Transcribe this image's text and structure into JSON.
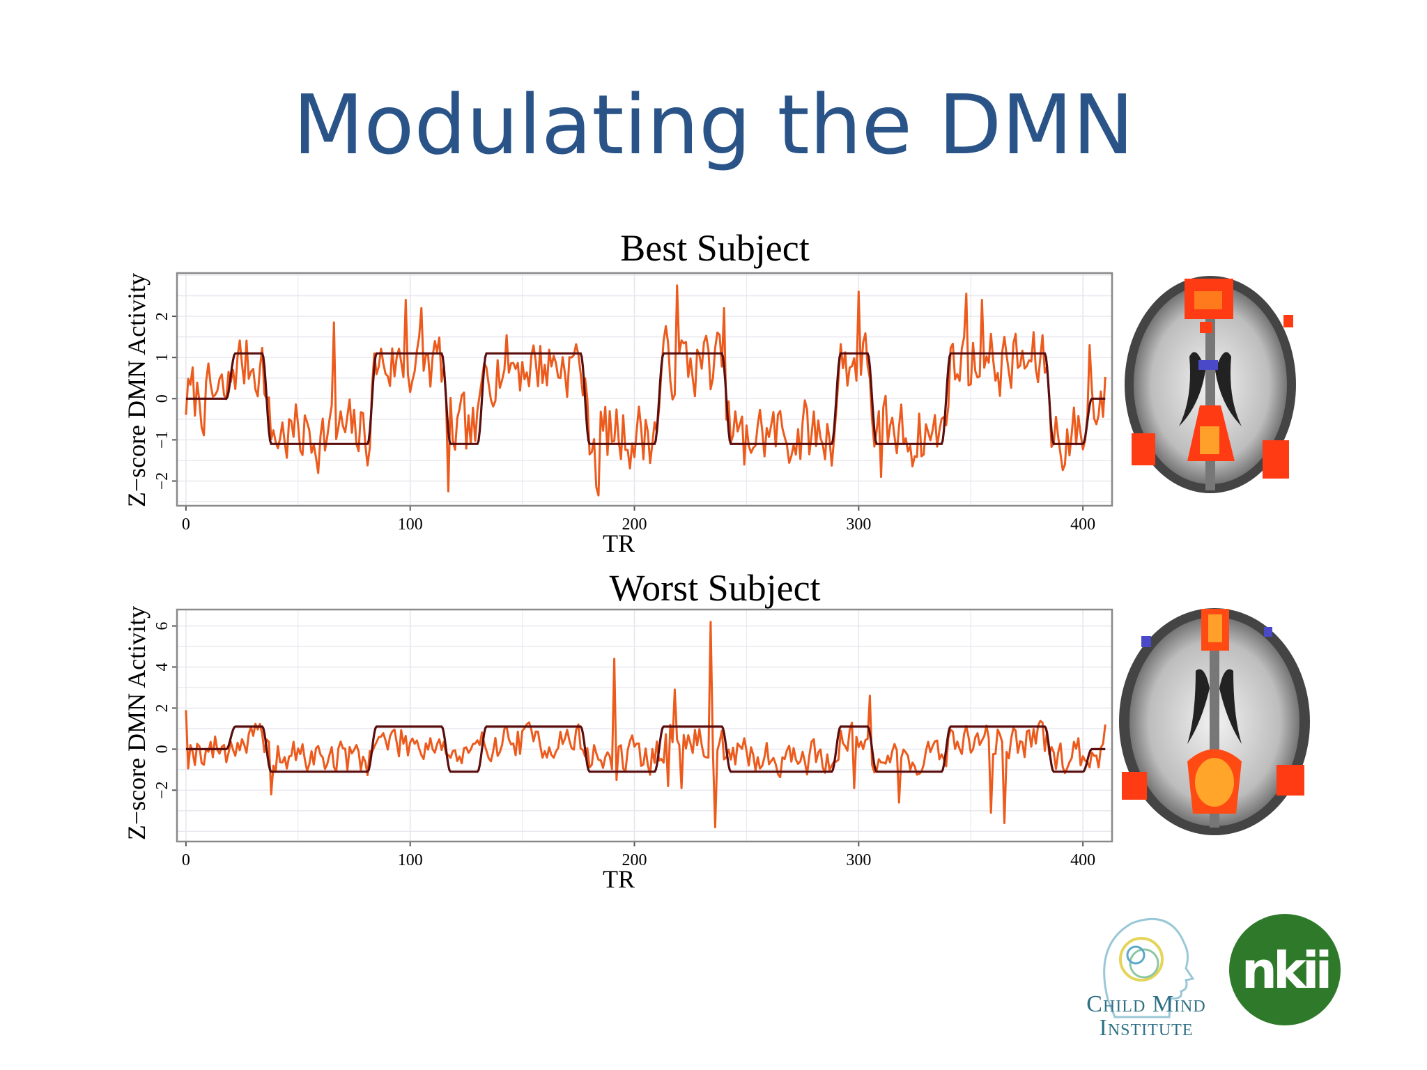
{
  "slide": {
    "title": "Modulating the DMN"
  },
  "colors": {
    "title": "#2a5488",
    "signal": "#ec5a1c",
    "model": "#5a0e0e",
    "panel_border": "#888888",
    "grid": "#e6e6ee"
  },
  "logos": {
    "child_mind_institute": "Child Mind\nInstitute",
    "nkii": "nkii"
  },
  "chart_data": [
    {
      "type": "line",
      "title": "Best Subject",
      "xlabel": "TR",
      "ylabel": "Z−score DMN Activity",
      "xlim": [
        -4,
        413
      ],
      "ylim": [
        -2.6,
        3.05
      ],
      "xticks": [
        0,
        100,
        200,
        300,
        400
      ],
      "yticks": [
        -2,
        -1,
        0,
        1,
        2
      ],
      "grid": true,
      "series": [
        {
          "role": "model",
          "color": "#5a0e0e",
          "low": -1.1,
          "high": 1.1,
          "breaks": [
            [
              0,
              "base"
            ],
            [
              18,
              "high"
            ],
            [
              34,
              "low"
            ],
            [
              81,
              "high"
            ],
            [
              114,
              "low"
            ],
            [
              130,
              "high"
            ],
            [
              176,
              "low"
            ],
            [
              209,
              "high"
            ],
            [
              239,
              "low"
            ],
            [
              288,
              "high"
            ],
            [
              304,
              "low"
            ],
            [
              337,
              "high"
            ],
            [
              383,
              "low"
            ],
            [
              400,
              "base"
            ]
          ]
        },
        {
          "role": "signal",
          "color": "#ec5a1c",
          "seed": 7,
          "noise": 0.75,
          "scale": 0.78,
          "spikes": [
            [
              66,
              1.85
            ],
            [
              98,
              2.4
            ],
            [
              105,
              2.2
            ],
            [
              117,
              -2.25
            ],
            [
              183,
              -2.15
            ],
            [
              184,
              -2.35
            ],
            [
              219,
              2.75
            ],
            [
              240,
              2.2
            ],
            [
              249,
              -1.6
            ],
            [
              300,
              2.6
            ],
            [
              310,
              -1.9
            ],
            [
              348,
              2.55
            ],
            [
              355,
              2.4
            ],
            [
              392,
              -1.6
            ],
            [
              403,
              1.3
            ]
          ]
        }
      ]
    },
    {
      "type": "line",
      "title": "Worst Subject",
      "xlabel": "TR",
      "ylabel": "Z−score DMN Activity",
      "xlim": [
        -4,
        413
      ],
      "ylim": [
        -4.5,
        6.8
      ],
      "xticks": [
        0,
        100,
        200,
        300,
        400
      ],
      "yticks": [
        -2,
        0,
        2,
        4,
        6
      ],
      "grid": true,
      "series": [
        {
          "role": "model",
          "color": "#5a0e0e",
          "low": -1.1,
          "high": 1.1,
          "breaks": [
            [
              0,
              "base"
            ],
            [
              18,
              "high"
            ],
            [
              34,
              "low"
            ],
            [
              81,
              "high"
            ],
            [
              114,
              "low"
            ],
            [
              130,
              "high"
            ],
            [
              176,
              "low"
            ],
            [
              209,
              "high"
            ],
            [
              239,
              "low"
            ],
            [
              288,
              "high"
            ],
            [
              304,
              "low"
            ],
            [
              337,
              "high"
            ],
            [
              383,
              "low"
            ],
            [
              400,
              "base"
            ]
          ]
        },
        {
          "role": "signal",
          "color": "#ec5a1c",
          "seed": 19,
          "noise": 0.8,
          "scale": 0.35,
          "spikes": [
            [
              0,
              1.9
            ],
            [
              38,
              -2.2
            ],
            [
              191,
              4.4
            ],
            [
              192,
              -1.5
            ],
            [
              215,
              -1.8
            ],
            [
              218,
              2.9
            ],
            [
              221,
              -1.9
            ],
            [
              234,
              6.2
            ],
            [
              236,
              -3.8
            ],
            [
              240,
              -0.5
            ],
            [
              298,
              -1.9
            ],
            [
              305,
              2.6
            ],
            [
              318,
              -2.6
            ],
            [
              359,
              -3.1
            ],
            [
              365,
              -3.6
            ],
            [
              410,
              1.2
            ]
          ]
        }
      ]
    }
  ]
}
